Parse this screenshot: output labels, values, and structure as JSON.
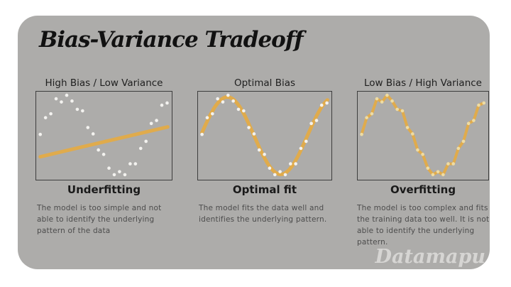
{
  "title": "Bias-Variance Tradeoff",
  "watermark": "Datamapu",
  "colors": {
    "page_bg": "#ffffff",
    "card_bg": "#adacaa",
    "accent_line": "#e0ab4c",
    "dot": "#f3f2ef",
    "dot_overfit": "#eedca4",
    "box_border": "#3d3d3d",
    "title_text": "#111111",
    "description_text": "#4c4c4c",
    "watermark_text": "#d6d5d3"
  },
  "chart_data": {
    "type": "scatter",
    "coords": "normalized 0-1, y increases downward",
    "points": [
      [
        0.03,
        0.485
      ],
      [
        0.069,
        0.295
      ],
      [
        0.108,
        0.25
      ],
      [
        0.147,
        0.08
      ],
      [
        0.186,
        0.116
      ],
      [
        0.225,
        0.04
      ],
      [
        0.264,
        0.106
      ],
      [
        0.303,
        0.2
      ],
      [
        0.342,
        0.217
      ],
      [
        0.381,
        0.407
      ],
      [
        0.42,
        0.48
      ],
      [
        0.459,
        0.663
      ],
      [
        0.498,
        0.713
      ],
      [
        0.537,
        0.87
      ],
      [
        0.576,
        0.944
      ],
      [
        0.615,
        0.91
      ],
      [
        0.654,
        0.944
      ],
      [
        0.693,
        0.82
      ],
      [
        0.732,
        0.82
      ],
      [
        0.771,
        0.645
      ],
      [
        0.81,
        0.564
      ],
      [
        0.849,
        0.361
      ],
      [
        0.888,
        0.327
      ],
      [
        0.927,
        0.153
      ],
      [
        0.966,
        0.128
      ]
    ],
    "panels": [
      {
        "id": "underfitting",
        "header": "High Bias / Low Variance",
        "caption": "Underfitting",
        "description": "The model is too simple and not able to identify the underlying pattern of the data",
        "fit_type": "line",
        "fit_line": [
          [
            0.03,
            0.74
          ],
          [
            0.97,
            0.4
          ]
        ],
        "stroke_width": 5
      },
      {
        "id": "optimal-fit",
        "header": "Optimal Bias",
        "caption": "Optimal fit",
        "description": "The model fits the data well and identifies the underlying pattern.",
        "fit_type": "sine",
        "sine": {
          "center": 0.5,
          "amplitude": 0.44,
          "period": 0.8,
          "phase": 0.02,
          "x_start": 0.03,
          "x_end": 0.97
        },
        "stroke_width": 5
      },
      {
        "id": "overfitting",
        "header": "Low Bias / High Variance",
        "caption": "Overfitting",
        "description": "The model is too complex and fits the training data too well. It is not able to identify the underlying pattern.",
        "fit_type": "polyline",
        "stroke_width": 4
      }
    ]
  }
}
